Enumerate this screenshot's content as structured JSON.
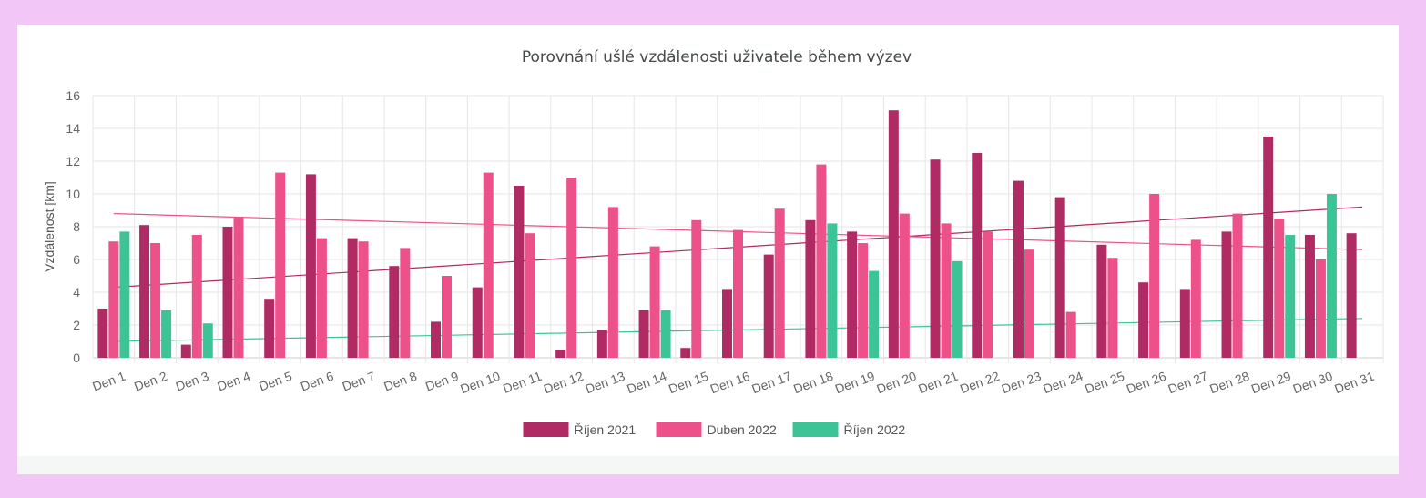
{
  "chart_data": {
    "type": "bar",
    "title": "Porovnání ušlé vzdálenosti uživatele během výzev",
    "ylabel": "Vzdálenost [km]",
    "xlabel": "",
    "ylim": [
      0,
      16
    ],
    "yticks": [
      0,
      2,
      4,
      6,
      8,
      10,
      12,
      14,
      16
    ],
    "categories": [
      "Den 1",
      "Den 2",
      "Den 3",
      "Den 4",
      "Den 5",
      "Den 6",
      "Den 7",
      "Den 8",
      "Den 9",
      "Den 10",
      "Den 11",
      "Den 12",
      "Den 13",
      "Den 14",
      "Den 15",
      "Den 16",
      "Den 17",
      "Den 18",
      "Den 19",
      "Den 20",
      "Den 21",
      "Den 22",
      "Den 23",
      "Den 24",
      "Den 25",
      "Den 26",
      "Den 27",
      "Den 28",
      "Den 29",
      "Den 30",
      "Den 31"
    ],
    "series": [
      {
        "name": "Říjen 2021",
        "color": "#b02a63",
        "values": [
          3.0,
          8.1,
          0.8,
          8.0,
          3.6,
          11.2,
          7.3,
          5.6,
          2.2,
          4.3,
          10.5,
          0.5,
          1.7,
          2.9,
          0.6,
          4.2,
          6.3,
          8.4,
          7.7,
          15.1,
          12.1,
          12.5,
          10.8,
          9.8,
          6.9,
          4.6,
          4.2,
          7.7,
          13.5,
          7.5,
          7.6
        ],
        "trend": [
          4.3,
          9.2
        ]
      },
      {
        "name": "Duben 2022",
        "color": "#ec5189",
        "values": [
          7.1,
          7.0,
          7.5,
          8.6,
          11.3,
          7.3,
          7.1,
          6.7,
          5.0,
          11.3,
          7.6,
          11.0,
          9.2,
          6.8,
          8.4,
          7.8,
          9.1,
          11.8,
          7.0,
          8.8,
          8.2,
          7.7,
          6.6,
          2.8,
          6.1,
          10.0,
          7.2,
          8.8,
          8.5,
          6.0,
          null
        ],
        "trend": [
          8.8,
          6.6
        ]
      },
      {
        "name": "Říjen 2022",
        "color": "#3cc497",
        "values": [
          7.7,
          2.9,
          2.1,
          null,
          null,
          null,
          null,
          null,
          null,
          null,
          null,
          null,
          null,
          2.9,
          null,
          null,
          null,
          8.2,
          5.3,
          null,
          5.9,
          null,
          null,
          null,
          null,
          null,
          null,
          null,
          7.5,
          10.0,
          null
        ],
        "trend": [
          1.0,
          2.4
        ]
      }
    ],
    "legend_position": "bottom",
    "grid": true
  }
}
